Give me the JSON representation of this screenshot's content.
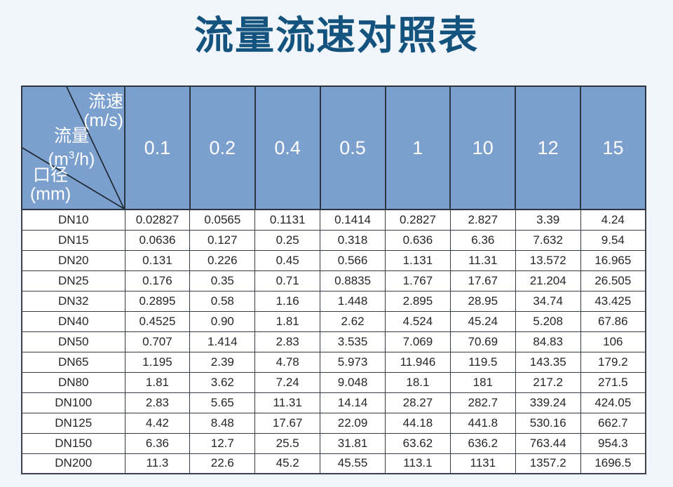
{
  "page": {
    "title": "流量流速对照表",
    "background_color": "#f0f6fb",
    "title_color": "#15537f"
  },
  "colors": {
    "header_blue": "#7ba0cd",
    "header_text": "#ffffff",
    "border_dark": "#333b45",
    "cell_text": "#262626"
  },
  "table": {
    "corner": {
      "velocity_label": "流速",
      "velocity_unit": "(m/s)",
      "flow_label": "流量",
      "flow_unit_prefix": "(m",
      "flow_unit_sup": "3",
      "flow_unit_suffix": "/h)",
      "diameter_label": "口径",
      "diameter_unit": "(mm)"
    },
    "velocity_columns": [
      "0.1",
      "0.2",
      "0.4",
      "0.5",
      "1",
      "10",
      "12",
      "15"
    ],
    "rows": [
      {
        "dn": "DN10",
        "values": [
          "0.02827",
          "0.0565",
          "0.1131",
          "0.1414",
          "0.2827",
          "2.827",
          "3.39",
          "4.24"
        ]
      },
      {
        "dn": "DN15",
        "values": [
          "0.0636",
          "0.127",
          "0.25",
          "0.318",
          "0.636",
          "6.36",
          "7.632",
          "9.54"
        ]
      },
      {
        "dn": "DN20",
        "values": [
          "0.131",
          "0.226",
          "0.45",
          "0.566",
          "1.131",
          "11.31",
          "13.572",
          "16.965"
        ]
      },
      {
        "dn": "DN25",
        "values": [
          "0.176",
          "0.35",
          "0.71",
          "0.8835",
          "1.767",
          "17.67",
          "21.204",
          "26.505"
        ]
      },
      {
        "dn": "DN32",
        "values": [
          "0.2895",
          "0.58",
          "1.16",
          "1.448",
          "2.895",
          "28.95",
          "34.74",
          "43.425"
        ]
      },
      {
        "dn": "DN40",
        "values": [
          "0.4525",
          "0.90",
          "1.81",
          "2.62",
          "4.524",
          "45.24",
          "5.208",
          "67.86"
        ]
      },
      {
        "dn": "DN50",
        "values": [
          "0.707",
          "1.414",
          "2.83",
          "3.535",
          "7.069",
          "70.69",
          "84.83",
          "106"
        ]
      },
      {
        "dn": "DN65",
        "values": [
          "1.195",
          "2.39",
          "4.78",
          "5.973",
          "11.946",
          "119.5",
          "143.35",
          "179.2"
        ]
      },
      {
        "dn": "DN80",
        "values": [
          "1.81",
          "3.62",
          "7.24",
          "9.048",
          "18.1",
          "181",
          "217.2",
          "271.5"
        ]
      },
      {
        "dn": "DN100",
        "values": [
          "2.83",
          "5.65",
          "11.31",
          "14.14",
          "28.27",
          "282.7",
          "339.24",
          "424.05"
        ]
      },
      {
        "dn": "DN125",
        "values": [
          "4.42",
          "8.48",
          "17.67",
          "22.09",
          "44.18",
          "441.8",
          "530.16",
          "662.7"
        ]
      },
      {
        "dn": "DN150",
        "values": [
          "6.36",
          "12.7",
          "25.5",
          "31.81",
          "63.62",
          "636.2",
          "763.44",
          "954.3"
        ]
      },
      {
        "dn": "DN200",
        "values": [
          "11.3",
          "22.6",
          "45.2",
          "45.55",
          "113.1",
          "1131",
          "1357.2",
          "1696.5"
        ]
      }
    ]
  }
}
